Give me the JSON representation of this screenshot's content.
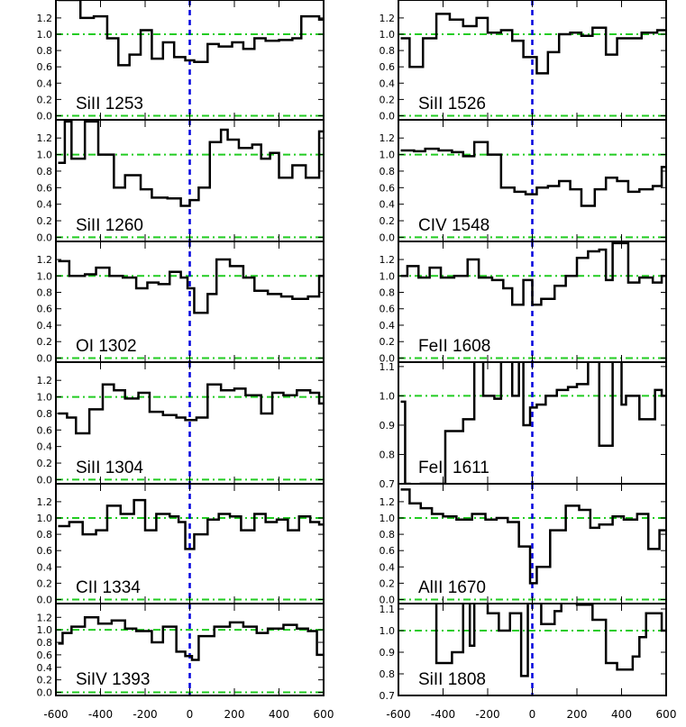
{
  "chart_data": {
    "type": "line",
    "layout": "2 columns x 6 rows of stacked spectral-line panels",
    "xlim": [
      -600,
      600
    ],
    "xticks": [
      -600,
      -400,
      -200,
      0,
      200,
      400,
      600
    ],
    "xtick_labels": [
      "-600",
      "-400",
      "-200",
      "0",
      "200",
      "400",
      "600"
    ],
    "reference_lines": {
      "continuum_levels": [
        0.0,
        1.0
      ],
      "continuum_style": "dash-dot",
      "continuum_color": "#22cc22",
      "zero_velocity_style": "dashed",
      "zero_velocity_color": "#0000dd"
    },
    "step_line_color": "#000000",
    "grid": false,
    "panels": [
      {
        "col": 0,
        "row": 0,
        "label": "SiII 1253",
        "ylim": [
          -0.05,
          1.42
        ],
        "yticks": [
          0.0,
          0.2,
          0.4,
          0.6,
          0.8,
          1.0,
          1.2
        ],
        "ytick_labels": [
          "0.0",
          "0.2",
          "0.4",
          "0.6",
          "0.8",
          "1.0",
          "1.2"
        ],
        "hlines": [
          0.0,
          1.0
        ],
        "x": [
          -590,
          -490,
          -430,
          -370,
          -320,
          -270,
          -220,
          -170,
          -120,
          -70,
          -20,
          20,
          80,
          130,
          190,
          240,
          290,
          340,
          400,
          460,
          500,
          580
        ],
        "y": [
          1.42,
          1.2,
          1.22,
          0.95,
          0.62,
          0.75,
          1.05,
          0.7,
          0.9,
          0.72,
          0.68,
          0.66,
          0.88,
          0.85,
          0.9,
          0.82,
          0.95,
          0.92,
          0.93,
          0.95,
          1.22,
          1.18
        ]
      },
      {
        "col": 1,
        "row": 0,
        "label": "SiII 1526",
        "ylim": [
          -0.05,
          1.42
        ],
        "yticks": [
          0.0,
          0.2,
          0.4,
          0.6,
          0.8,
          1.0,
          1.2
        ],
        "ytick_labels": [
          "0.0",
          "0.2",
          "0.4",
          "0.6",
          "0.8",
          "1.0",
          "1.2"
        ],
        "hlines": [
          0.0,
          1.0
        ],
        "x": [
          -590,
          -550,
          -490,
          -430,
          -370,
          -310,
          -250,
          -200,
          -140,
          -90,
          -40,
          20,
          70,
          120,
          170,
          220,
          270,
          330,
          380,
          430,
          490,
          560
        ],
        "y": [
          0.95,
          0.6,
          0.95,
          1.25,
          1.18,
          1.1,
          1.2,
          1.02,
          1.05,
          0.92,
          0.72,
          0.52,
          0.78,
          1.0,
          1.02,
          0.98,
          1.08,
          0.75,
          0.95,
          0.95,
          1.02,
          1.05
        ]
      },
      {
        "col": 0,
        "row": 1,
        "label": "SiII 1260",
        "ylim": [
          -0.05,
          1.42
        ],
        "yticks": [
          0.0,
          0.2,
          0.4,
          0.6,
          0.8,
          1.0,
          1.2
        ],
        "ytick_labels": [
          "0.0",
          "0.2",
          "0.4",
          "0.6",
          "0.8",
          "1.0",
          "1.2"
        ],
        "hlines": [
          0.0,
          1.0
        ],
        "x": [
          -590,
          -560,
          -530,
          -470,
          -410,
          -340,
          -290,
          -220,
          -170,
          -100,
          -40,
          0,
          40,
          90,
          140,
          170,
          220,
          280,
          320,
          360,
          400,
          460,
          520,
          580
        ],
        "y": [
          0.9,
          1.4,
          0.95,
          1.4,
          1.0,
          0.6,
          0.75,
          0.58,
          0.48,
          0.47,
          0.38,
          0.45,
          0.6,
          1.15,
          1.3,
          1.18,
          1.08,
          1.12,
          0.95,
          1.02,
          0.72,
          0.87,
          0.72,
          1.28
        ]
      },
      {
        "col": 1,
        "row": 1,
        "label": "CIV 1548",
        "ylim": [
          -0.05,
          1.42
        ],
        "yticks": [
          0.0,
          0.2,
          0.4,
          0.6,
          0.8,
          1.0,
          1.2
        ],
        "ytick_labels": [
          "0.0",
          "0.2",
          "0.4",
          "0.6",
          "0.8",
          "1.0",
          "1.2"
        ],
        "hlines": [
          0.0,
          1.0
        ],
        "x": [
          -590,
          -530,
          -480,
          -420,
          -360,
          -310,
          -260,
          -200,
          -140,
          -80,
          -30,
          20,
          70,
          120,
          170,
          220,
          280,
          330,
          380,
          430,
          480,
          540,
          580
        ],
        "y": [
          1.05,
          1.04,
          1.07,
          1.05,
          1.03,
          0.98,
          1.15,
          1.0,
          0.6,
          0.55,
          0.52,
          0.6,
          0.62,
          0.68,
          0.58,
          0.38,
          0.58,
          0.72,
          0.68,
          0.55,
          0.58,
          0.62,
          0.85
        ]
      },
      {
        "col": 0,
        "row": 2,
        "label": "OI 1302",
        "ylim": [
          -0.05,
          1.42
        ],
        "yticks": [
          0.0,
          0.2,
          0.4,
          0.6,
          0.8,
          1.0,
          1.2
        ],
        "ytick_labels": [
          "0.0",
          "0.2",
          "0.4",
          "0.6",
          "0.8",
          "1.0",
          "1.2"
        ],
        "hlines": [
          0.0,
          1.0
        ],
        "x": [
          -590,
          -540,
          -470,
          -420,
          -360,
          -300,
          -240,
          -190,
          -140,
          -90,
          -40,
          -10,
          20,
          80,
          120,
          180,
          240,
          290,
          350,
          410,
          460,
          530,
          580
        ],
        "y": [
          1.18,
          1.0,
          1.02,
          1.1,
          1.0,
          0.98,
          0.85,
          0.92,
          0.9,
          1.05,
          0.98,
          0.85,
          0.55,
          0.78,
          1.2,
          1.12,
          0.98,
          0.82,
          0.78,
          0.75,
          0.72,
          0.75,
          1.0
        ]
      },
      {
        "col": 1,
        "row": 2,
        "label": "FeII 1608",
        "ylim": [
          -0.05,
          1.42
        ],
        "yticks": [
          0.0,
          0.2,
          0.4,
          0.6,
          0.8,
          1.0,
          1.2
        ],
        "ytick_labels": [
          "0.0",
          "0.2",
          "0.4",
          "0.6",
          "0.8",
          "1.0",
          "1.2"
        ],
        "hlines": [
          0.0,
          1.0
        ],
        "x": [
          -590,
          -560,
          -510,
          -460,
          -410,
          -350,
          -290,
          -240,
          -180,
          -130,
          -90,
          -40,
          0,
          40,
          100,
          150,
          200,
          250,
          300,
          330,
          360,
          430,
          480,
          540,
          580
        ],
        "y": [
          1.0,
          1.12,
          0.98,
          1.1,
          0.98,
          1.0,
          1.2,
          0.98,
          0.95,
          0.85,
          0.65,
          0.95,
          0.65,
          0.72,
          0.88,
          1.0,
          1.22,
          1.3,
          1.32,
          0.95,
          1.4,
          0.92,
          0.98,
          0.92,
          1.0
        ]
      },
      {
        "col": 0,
        "row": 3,
        "label": "SiII 1304",
        "ylim": [
          -0.05,
          1.42
        ],
        "yticks": [
          0.0,
          0.2,
          0.4,
          0.6,
          0.8,
          1.0,
          1.2
        ],
        "ytick_labels": [
          "0.0",
          "0.2",
          "0.4",
          "0.6",
          "0.8",
          "1.0",
          "1.2"
        ],
        "hlines": [
          0.0,
          1.0
        ],
        "x": [
          -590,
          -550,
          -510,
          -450,
          -390,
          -340,
          -290,
          -230,
          -180,
          -120,
          -60,
          -20,
          30,
          80,
          140,
          200,
          250,
          320,
          370,
          420,
          480,
          540,
          580
        ],
        "y": [
          0.8,
          0.75,
          0.56,
          0.85,
          1.15,
          1.08,
          0.98,
          1.05,
          0.82,
          0.78,
          0.75,
          0.72,
          0.75,
          1.15,
          1.08,
          1.1,
          1.02,
          0.8,
          1.05,
          1.02,
          1.08,
          1.05,
          0.92
        ]
      },
      {
        "col": 1,
        "row": 3,
        "label": "FeII 1611",
        "ylim": [
          0.7,
          1.115
        ],
        "yticks": [
          0.7,
          0.8,
          0.9,
          1.0,
          1.1
        ],
        "ytick_labels": [
          "0.7",
          "0.8",
          "0.9",
          "1.0",
          "1.1"
        ],
        "hlines": [
          1.0
        ],
        "x": [
          -590,
          -570,
          -550,
          -500,
          -450,
          -390,
          -310,
          -260,
          -220,
          -170,
          -140,
          -90,
          -60,
          -40,
          -10,
          20,
          60,
          110,
          160,
          200,
          250,
          300,
          360,
          400,
          420,
          480,
          550,
          580
        ],
        "y": [
          0.98,
          0.7,
          0.6,
          0.7,
          0.7,
          0.88,
          0.92,
          1.15,
          1.0,
          0.99,
          1.15,
          1.0,
          1.15,
          0.9,
          0.96,
          0.97,
          1.0,
          1.02,
          1.03,
          1.04,
          1.15,
          0.83,
          1.15,
          0.97,
          1.0,
          0.92,
          1.02,
          1.0
        ]
      },
      {
        "col": 0,
        "row": 4,
        "label": "CII 1334",
        "ylim": [
          -0.05,
          1.42
        ],
        "yticks": [
          0.0,
          0.2,
          0.4,
          0.6,
          0.8,
          1.0,
          1.2
        ],
        "ytick_labels": [
          "0.0",
          "0.2",
          "0.4",
          "0.6",
          "0.8",
          "1.0",
          "1.2"
        ],
        "hlines": [
          0.0,
          1.0
        ],
        "x": [
          -590,
          -540,
          -480,
          -420,
          -370,
          -310,
          -250,
          -200,
          -150,
          -90,
          -50,
          -20,
          20,
          80,
          130,
          180,
          230,
          290,
          340,
          390,
          440,
          490,
          540,
          580
        ],
        "y": [
          0.9,
          0.95,
          0.8,
          0.85,
          1.15,
          1.05,
          1.22,
          0.85,
          1.05,
          1.02,
          0.95,
          0.62,
          0.8,
          0.98,
          1.05,
          1.02,
          0.85,
          1.05,
          0.95,
          0.98,
          0.85,
          1.02,
          0.95,
          0.92
        ]
      },
      {
        "col": 1,
        "row": 4,
        "label": "AlII 1670",
        "ylim": [
          -0.05,
          1.42
        ],
        "yticks": [
          0.0,
          0.2,
          0.4,
          0.6,
          0.8,
          1.0,
          1.2
        ],
        "ytick_labels": [
          "0.0",
          "0.2",
          "0.4",
          "0.6",
          "0.8",
          "1.0",
          "1.2"
        ],
        "hlines": [
          0.0,
          1.0
        ],
        "x": [
          -590,
          -550,
          -500,
          -450,
          -400,
          -340,
          -270,
          -210,
          -160,
          -110,
          -60,
          -10,
          20,
          80,
          150,
          210,
          260,
          300,
          360,
          410,
          470,
          520,
          570,
          580
        ],
        "y": [
          1.35,
          1.18,
          1.12,
          1.05,
          1.02,
          0.98,
          1.05,
          0.98,
          1.0,
          0.95,
          0.65,
          0.2,
          0.4,
          0.85,
          1.15,
          1.1,
          0.88,
          0.92,
          1.02,
          0.98,
          1.05,
          0.62,
          0.85,
          0.85
        ]
      },
      {
        "col": 0,
        "row": 5,
        "label": "SiIV 1393",
        "ylim": [
          -0.05,
          1.42
        ],
        "yticks": [
          0.0,
          0.2,
          0.4,
          0.6,
          0.8,
          1.0,
          1.2
        ],
        "ytick_labels": [
          "0.0",
          "0.2",
          "0.4",
          "0.6",
          "0.8",
          "1.0",
          "1.2"
        ],
        "hlines": [
          0.0,
          1.0
        ],
        "x": [
          -590,
          -570,
          -530,
          -470,
          -410,
          -350,
          -290,
          -240,
          -170,
          -120,
          -60,
          -20,
          10,
          40,
          110,
          180,
          240,
          300,
          350,
          420,
          480,
          530,
          570,
          580
        ],
        "y": [
          0.78,
          0.95,
          1.05,
          1.2,
          1.1,
          1.15,
          1.02,
          0.98,
          0.8,
          1.05,
          0.65,
          0.58,
          0.52,
          0.9,
          1.05,
          1.12,
          1.05,
          0.95,
          1.02,
          1.08,
          1.02,
          0.98,
          0.6,
          0.6
        ]
      },
      {
        "col": 1,
        "row": 5,
        "label": "SiII 1808",
        "ylim": [
          0.7,
          1.125
        ],
        "yticks": [
          0.7,
          0.8,
          0.9,
          1.0,
          1.1
        ],
        "ytick_labels": [
          "0.7",
          "0.8",
          "0.9",
          "1.0",
          "1.1"
        ],
        "hlines": [
          1.0
        ],
        "x": [
          -590,
          -430,
          -360,
          -310,
          -280,
          -260,
          -200,
          -150,
          -100,
          -50,
          -20,
          40,
          100,
          130,
          200,
          270,
          330,
          380,
          450,
          480,
          510,
          560,
          580
        ],
        "y": [
          1.14,
          0.85,
          0.9,
          1.14,
          0.93,
          1.14,
          1.08,
          1.0,
          1.08,
          0.79,
          1.14,
          1.03,
          1.09,
          1.13,
          1.12,
          1.05,
          0.85,
          0.82,
          0.88,
          0.97,
          1.08,
          1.08,
          1.0
        ]
      }
    ]
  }
}
